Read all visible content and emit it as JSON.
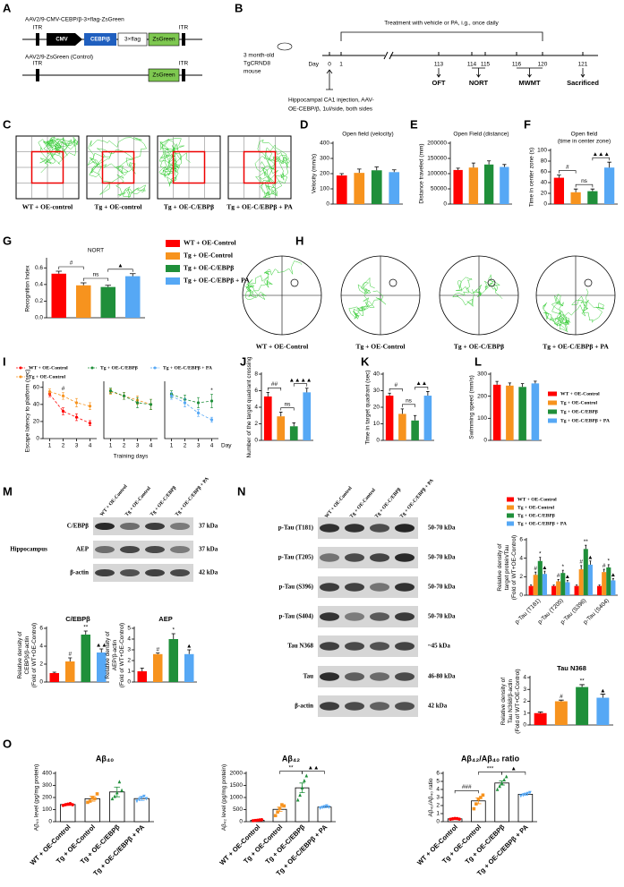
{
  "panel_letters": [
    "A",
    "B",
    "C",
    "D",
    "E",
    "F",
    "G",
    "H",
    "I",
    "J",
    "K",
    "L",
    "M",
    "N",
    "O"
  ],
  "construct": {
    "title": "AAV2/9-CMV-CEBP/β-3×flag-ZsGreen",
    "itr": "ITR",
    "cmv": "CMV",
    "cebp": "CEBP/β",
    "flag": "3×flag",
    "zsgreen": "ZsGreen",
    "control_title": "AAV2/9-ZsGreen (Control)"
  },
  "timeline": {
    "treatment": "Treatment with vehicle or PA, i.g., once daily",
    "mouse": [
      "3 month-old",
      "TgCRND8",
      "mouse"
    ],
    "day_label": "Day",
    "days": [
      0,
      1,
      113,
      114,
      115,
      116,
      120,
      121
    ],
    "tests": [
      "OFT",
      "NORT",
      "MWMT",
      "Sacrificed"
    ],
    "injection": [
      "Hippocampal CA1 injection, AAV-",
      "OE-CEBP/β, 1ul/side, both sides"
    ]
  },
  "open_field_captions": [
    "WT + OE-control",
    "Tg + OE-control",
    "Tg + OE-C/EBPβ",
    "Tg + OE-C/EBPβ + PA"
  ],
  "maze_captions": [
    "WT + OE-Control",
    "Tg + OE-Control",
    "Tg + OE-C/EBPβ",
    "Tg + OE-C/EBPβ + PA"
  ],
  "blot_m": {
    "tissue": "Hippocampus",
    "lanes": [
      "WT + OE-Control",
      "Tg + OE-Control",
      "Tg + OE-C/EBPβ",
      "Tg + OE-C/EBPβ + PA"
    ],
    "rows": [
      {
        "label": "C/EBPβ",
        "size": "37 kDa"
      },
      {
        "label": "AEP",
        "size": "37 kDa"
      },
      {
        "label": "β-actin",
        "size": "42 kDa"
      }
    ]
  },
  "blot_n": {
    "lanes": [
      "WT + OE-Control",
      "Tg + OE-Control",
      "Tg + OE-C/EBPβ",
      "Tg + OE-C/EBPβ + PA"
    ],
    "rows": [
      {
        "label": "p-Tau (T181)",
        "size": "50-70 kDa"
      },
      {
        "label": "p-Tau (T205)",
        "size": "50-70 kDa"
      },
      {
        "label": "p-Tau (S396)",
        "size": "50-70 kDa"
      },
      {
        "label": "p-Tau (S404)",
        "size": "50-70 kDa"
      },
      {
        "label": "Tau N368",
        "size": "~45 kDa"
      },
      {
        "label": "Tau",
        "size": "46-80 kDa"
      },
      {
        "label": "β-actin",
        "size": "42 kDa"
      }
    ]
  },
  "chart_data": [
    {
      "type": "bar",
      "title": "Open field (velocity)",
      "ylabel": "Velocity (mm/s)",
      "values": [
        188,
        205,
        222,
        210
      ],
      "errors": [
        12,
        25,
        22,
        15
      ],
      "colors": [
        "#ff0000",
        "#f7931e",
        "#1f8f3a",
        "#56a8f5"
      ],
      "ylim": [
        0,
        400
      ],
      "yticks": [
        0,
        100,
        200,
        300,
        400
      ]
    },
    {
      "type": "bar",
      "title": "Open Field (distance)",
      "ylabel": "Distance traveled (mm)",
      "values": [
        112000,
        120000,
        130000,
        122000
      ],
      "errors": [
        6000,
        15000,
        12000,
        8000
      ],
      "colors": [
        "#ff0000",
        "#f7931e",
        "#1f8f3a",
        "#56a8f5"
      ],
      "ylim": [
        0,
        200000
      ],
      "yticks": [
        0,
        50000,
        100000,
        150000,
        200000
      ]
    },
    {
      "type": "bar",
      "title": [
        "Open field",
        "(time in center zone)"
      ],
      "ylabel": "Time in center zone (s)",
      "values": [
        49,
        22,
        24,
        68
      ],
      "errors": [
        5,
        6,
        4,
        10
      ],
      "colors": [
        "#ff0000",
        "#f7931e",
        "#1f8f3a",
        "#56a8f5"
      ],
      "ylim": [
        0,
        100
      ],
      "yticks": [
        0,
        20,
        40,
        60,
        80,
        100
      ],
      "annotations": [
        {
          "text": "#",
          "from": 0,
          "to": 1
        },
        {
          "text": "ns",
          "from": 1,
          "to": 2
        },
        {
          "text": "▲▲▲",
          "from": 2,
          "to": 3
        }
      ]
    },
    {
      "type": "bar",
      "title": "NORT",
      "ylabel": "Recognition Index",
      "values": [
        0.53,
        0.39,
        0.37,
        0.5
      ],
      "errors": [
        0.03,
        0.03,
        0.02,
        0.03
      ],
      "colors": [
        "#ff0000",
        "#f7931e",
        "#1f8f3a",
        "#56a8f5"
      ],
      "ylim": [
        0,
        0.7
      ],
      "yticks": [
        {
          "value": 0,
          "label": "0.0"
        },
        {
          "value": 0.2,
          "label": "0.2"
        },
        {
          "value": 0.4,
          "label": "0.4"
        },
        {
          "value": 0.6,
          "label": "0.6"
        }
      ],
      "annotations": [
        {
          "text": "#",
          "from": 0,
          "to": 1
        },
        {
          "text": "ns",
          "from": 1,
          "to": 2
        },
        {
          "text": "▲",
          "from": 2,
          "to": 3
        }
      ],
      "legend": [
        "WT + OE-Control",
        "Tg + OE-Control",
        "Tg + OE-C/EBPβ",
        "Tg + OE-C/EBPβ + PA"
      ]
    },
    {
      "type": "line",
      "ylabel": "Escape latency to platform (sec)",
      "x": [
        1,
        2,
        3,
        4
      ],
      "xlim": [
        0.5,
        4.5
      ],
      "xticks": [
        1,
        2,
        3,
        4
      ],
      "ylim": [
        0,
        65
      ],
      "yticks": [
        0,
        20,
        40,
        60
      ],
      "series": [
        {
          "name": "WT + OE-Control",
          "color": "#ff0000",
          "values": [
            52,
            32,
            25,
            18
          ],
          "errors": [
            3,
            4,
            4,
            3
          ]
        },
        {
          "name": "Tg + OE-Control",
          "color": "#f7931e",
          "values": [
            55,
            50,
            42,
            38
          ],
          "errors": [
            3,
            4,
            5,
            4
          ]
        }
      ],
      "annotations": [
        {
          "text": "#",
          "at": 1
        }
      ],
      "legend": [
        {
          "name": "WT + OE-Control",
          "color": "#ff0000"
        },
        {
          "name": "Tg + OE-C/EBPβ",
          "color": "#1f8f3a"
        },
        {
          "name": "Tg + OE-C/EBPβ + PA",
          "color": "#56a8f5"
        },
        {
          "name": "Tg + OE-Control",
          "color": "#f7931e"
        }
      ]
    },
    {
      "type": "line",
      "xlabel": "Training days",
      "x": [
        1,
        2,
        3,
        4
      ],
      "xlim": [
        0.5,
        4.5
      ],
      "xticks": [
        1,
        2,
        3,
        4
      ],
      "ylim": [
        0,
        65
      ],
      "series": [
        {
          "name": "Tg + OE-Control",
          "color": "#f7931e",
          "values": [
            55,
            50,
            45,
            40
          ],
          "errors": [
            3,
            4,
            5,
            6
          ]
        },
        {
          "name": "Tg + OE-C/EBPβ",
          "color": "#1f8f3a",
          "values": [
            56,
            50,
            42,
            40
          ],
          "errors": [
            3,
            4,
            6,
            6
          ]
        }
      ]
    },
    {
      "type": "line",
      "axis_end_label": "Day",
      "x": [
        1,
        2,
        3,
        4
      ],
      "xlim": [
        0.5,
        4.5
      ],
      "xticks": [
        1,
        2,
        3,
        4
      ],
      "ylim": [
        0,
        65
      ],
      "series": [
        {
          "name": "Tg + OE-C/EBPβ",
          "color": "#1f8f3a",
          "values": [
            52,
            46,
            42,
            44
          ],
          "errors": [
            4,
            5,
            6,
            8
          ]
        },
        {
          "name": "Tg + OE-C/EBPβ + PA",
          "color": "#56a8f5",
          "values": [
            50,
            42,
            30,
            22
          ],
          "errors": [
            4,
            5,
            4,
            3
          ]
        }
      ],
      "annotations": [
        {
          "text": "*",
          "at": 3
        }
      ]
    },
    {
      "type": "bar",
      "ylabel": [
        "Number of the target quadrant crossing"
      ],
      "values": [
        5.3,
        2.9,
        1.7,
        5.8
      ],
      "errors": [
        0.5,
        0.5,
        0.4,
        0.5
      ],
      "colors": [
        "#ff0000",
        "#f7931e",
        "#1f8f3a",
        "#56a8f5"
      ],
      "ylim": [
        0,
        8
      ],
      "yticks": [
        0,
        2,
        4,
        6,
        8
      ],
      "annotations": [
        {
          "text": "##",
          "from": 0,
          "to": 1
        },
        {
          "text": "ns",
          "from": 1,
          "to": 2
        },
        {
          "text": "▲▲▲▲",
          "from": 2,
          "to": 3
        }
      ]
    },
    {
      "type": "bar",
      "ylabel": "Time in target quadrant (sec)",
      "values": [
        27,
        16,
        12,
        27
      ],
      "errors": [
        1.5,
        3,
        3,
        2.5
      ],
      "colors": [
        "#ff0000",
        "#f7931e",
        "#1f8f3a",
        "#56a8f5"
      ],
      "ylim": [
        0,
        40
      ],
      "yticks": [
        0,
        10,
        20,
        30,
        40
      ],
      "annotations": [
        {
          "text": "#",
          "from": 0,
          "to": 1
        },
        {
          "text": "ns",
          "from": 1,
          "to": 2
        },
        {
          "text": "▲▲",
          "from": 2,
          "to": 3
        }
      ]
    },
    {
      "type": "bar",
      "ylabel": "Swimming speed (mm/s)",
      "values": [
        252,
        248,
        242,
        258
      ],
      "errors": [
        15,
        12,
        15,
        10
      ],
      "colors": [
        "#ff0000",
        "#f7931e",
        "#1f8f3a",
        "#56a8f5"
      ],
      "ylim": [
        0,
        300
      ],
      "yticks": [
        0,
        100,
        200,
        300
      ],
      "legend": [
        "WT + OE-Control",
        "Tg + OE-Control",
        "Tg + OE-C/EBPβ",
        "Tg + OE-C/EBPβ + PA"
      ]
    },
    {
      "type": "bar",
      "title": "C/EBPβ",
      "ylabel": [
        "Relative density of",
        "CEBPβ/β-actin",
        "(Fold of WT+OE-Control)"
      ],
      "values": [
        1,
        2.3,
        5.3,
        3.3
      ],
      "errors": [
        0.1,
        0.4,
        0.4,
        0.4
      ],
      "colors": [
        "#ff0000",
        "#f7931e",
        "#1f8f3a",
        "#56a8f5"
      ],
      "ylim": [
        0,
        6
      ],
      "yticks": [
        0,
        2,
        4,
        6
      ],
      "annotations": [
        {
          "text": "#",
          "at": 1
        },
        {
          "text": "**",
          "at": 2
        },
        {
          "text": "▲▲",
          "at": 3
        }
      ]
    },
    {
      "type": "bar",
      "title": "AEP",
      "ylabel": [
        "Relative density of",
        "AEP/β-actin",
        "(Fold of WT+OE-Control)"
      ],
      "values": [
        1,
        2.6,
        4,
        2.6
      ],
      "errors": [
        0.3,
        0.1,
        0.5,
        0.4
      ],
      "colors": [
        "#ff0000",
        "#f7931e",
        "#1f8f3a",
        "#56a8f5"
      ],
      "ylim": [
        0,
        5
      ],
      "yticks": [
        0,
        1,
        2,
        3,
        4,
        5
      ],
      "annotations": [
        {
          "text": "#",
          "at": 1
        },
        {
          "text": "*",
          "at": 2
        },
        {
          "text": "▲",
          "at": 3
        }
      ]
    },
    {
      "type": "bar",
      "ylabel": [
        "Relative density of",
        "target protein/Tau",
        "(Fold of WT+OE-Control)"
      ],
      "categories": [
        "p-Tau (T181)",
        "p-Tau (T205)",
        "p-Tau (S396)",
        "p-Tau (S404)"
      ],
      "series": [
        {
          "name": "WT + OE-Control",
          "color": "#ff0000",
          "values": [
            1,
            1,
            1,
            1
          ],
          "errors": [
            0.1,
            0.1,
            0.1,
            0.1
          ]
        },
        {
          "name": "Tg + OE-Control",
          "color": "#f7931e",
          "values": [
            2.2,
            1.5,
            2.8,
            2.5
          ],
          "errors": [
            0.3,
            0.2,
            0.4,
            0.3
          ]
        },
        {
          "name": "Tg + OE-C/EBPβ",
          "color": "#1f8f3a",
          "values": [
            3.7,
            2.4,
            5,
            3
          ],
          "errors": [
            0.4,
            0.3,
            0.4,
            0.3
          ]
        },
        {
          "name": "Tg + OE-C/EBPβ + PA",
          "color": "#56a8f5",
          "values": [
            2.3,
            1.4,
            3.3,
            1.6
          ],
          "errors": [
            0.3,
            0.2,
            0.4,
            0.2
          ]
        }
      ],
      "ylim": [
        0,
        6
      ],
      "yticks": [
        0,
        2,
        4,
        6
      ],
      "annotations": [
        {
          "text": "#",
          "series": 1,
          "at": 0
        },
        {
          "text": "*",
          "series": 2,
          "at": 0
        },
        {
          "text": "▲",
          "series": 3,
          "at": 0
        },
        {
          "text": "#",
          "series": 1,
          "at": 1
        },
        {
          "text": "*",
          "series": 2,
          "at": 1
        },
        {
          "text": "▲",
          "series": 3,
          "at": 1
        },
        {
          "text": "#",
          "series": 1,
          "at": 2
        },
        {
          "text": "**",
          "series": 2,
          "at": 2
        },
        {
          "text": "▲",
          "series": 3,
          "at": 2
        },
        {
          "text": "#",
          "series": 1,
          "at": 3
        },
        {
          "text": "*",
          "series": 2,
          "at": 3
        },
        {
          "text": "▲",
          "series": 3,
          "at": 3
        }
      ]
    },
    {
      "type": "bar",
      "title": "Tau N368",
      "ylabel": [
        "Relative density of",
        "Tau N368/β-actin",
        "(Fold of WT+OE-Control)"
      ],
      "values": [
        1,
        2,
        3.2,
        2.3
      ],
      "errors": [
        0.1,
        0.1,
        0.2,
        0.3
      ],
      "colors": [
        "#ff0000",
        "#f7931e",
        "#1f8f3a",
        "#56a8f5"
      ],
      "ylim": [
        0,
        4
      ],
      "yticks": [
        0,
        1,
        2,
        3,
        4
      ],
      "annotations": [
        {
          "text": "#",
          "at": 1
        },
        {
          "text": "**",
          "at": 2
        },
        {
          "text": "▲",
          "at": 3
        }
      ]
    },
    {
      "type": "bar",
      "title": "Aβ₄₀",
      "ylabel": "Aβ₄₀ level (pg/mg protein)",
      "categories": [
        "WT + OE-Control",
        "Tg + OE-Control",
        "Tg + OE-C/EBPβ",
        "Tg + OE-C/EBPβ + PA"
      ],
      "values": [
        142,
        190,
        246,
        191
      ],
      "errors": [
        8,
        20,
        40,
        15
      ],
      "points": [
        [
          135,
          140,
          145,
          150,
          140
        ],
        [
          160,
          170,
          200,
          190,
          230
        ],
        [
          190,
          210,
          240,
          330,
          260
        ],
        [
          170,
          185,
          200,
          210,
          190
        ]
      ],
      "colors": [
        "#ff0000",
        "#f7931e",
        "#1f8f3a",
        "#56a8f5"
      ],
      "ylim": [
        0,
        400
      ],
      "yticks": [
        0,
        100,
        200,
        300,
        400
      ]
    },
    {
      "type": "bar",
      "title": "Aβ₄₂",
      "ylabel": "Aβ₄₂ level (pg/mg protein)",
      "categories": [
        "WT + OE-Control",
        "Tg + OE-Control",
        "Tg + OE-C/EBPβ",
        "Tg + OE-C/EBPβ + PA"
      ],
      "values": [
        60,
        510,
        1400,
        604
      ],
      "errors": [
        10,
        90,
        200,
        25
      ],
      "points": [
        [
          40,
          50,
          60,
          70,
          80
        ],
        [
          250,
          400,
          550,
          700,
          650
        ],
        [
          900,
          1100,
          1400,
          1700,
          1900
        ],
        [
          560,
          590,
          620,
          650,
          600
        ]
      ],
      "colors": [
        "#ff0000",
        "#f7931e",
        "#1f8f3a",
        "#56a8f5"
      ],
      "ylim": [
        0,
        2000
      ],
      "yticks": [
        0,
        500,
        1000,
        1500,
        2000
      ],
      "annotations": [
        {
          "text": "**",
          "from": 1,
          "to": 2
        },
        {
          "text": "▲▲",
          "from": 2,
          "to": 3
        }
      ]
    },
    {
      "type": "bar",
      "title": "Aβ₄₂/Aβ₄₀ ratio",
      "ylabel": "Aβ₄₂/Aβ₄₀ ratio",
      "categories": [
        "WT + OE-Control",
        "Tg + OE-Control",
        "Tg + OE-C/EBPβ",
        "Tg + OE-C/EBPβ + PA"
      ],
      "values": [
        0.35,
        2.58,
        4.8,
        3.4
      ],
      "errors": [
        0.02,
        0.35,
        0.25,
        0.1
      ],
      "points": [
        [
          0.3,
          0.35,
          0.4,
          0.38,
          0.32
        ],
        [
          1.6,
          2.2,
          2.8,
          3,
          3.3
        ],
        [
          4,
          4.4,
          4.8,
          5.2,
          5.6
        ],
        [
          3.2,
          3.3,
          3.4,
          3.5,
          3.6
        ]
      ],
      "colors": [
        "#ff0000",
        "#f7931e",
        "#1f8f3a",
        "#56a8f5"
      ],
      "ylim": [
        0,
        6
      ],
      "yticks": [
        0,
        1,
        2,
        3,
        4,
        5,
        6
      ],
      "annotations": [
        {
          "text": "###",
          "from": 0,
          "to": 1
        },
        {
          "text": "***",
          "from": 1,
          "to": 2
        },
        {
          "text": "▲",
          "from": 2,
          "to": 3
        }
      ]
    }
  ]
}
